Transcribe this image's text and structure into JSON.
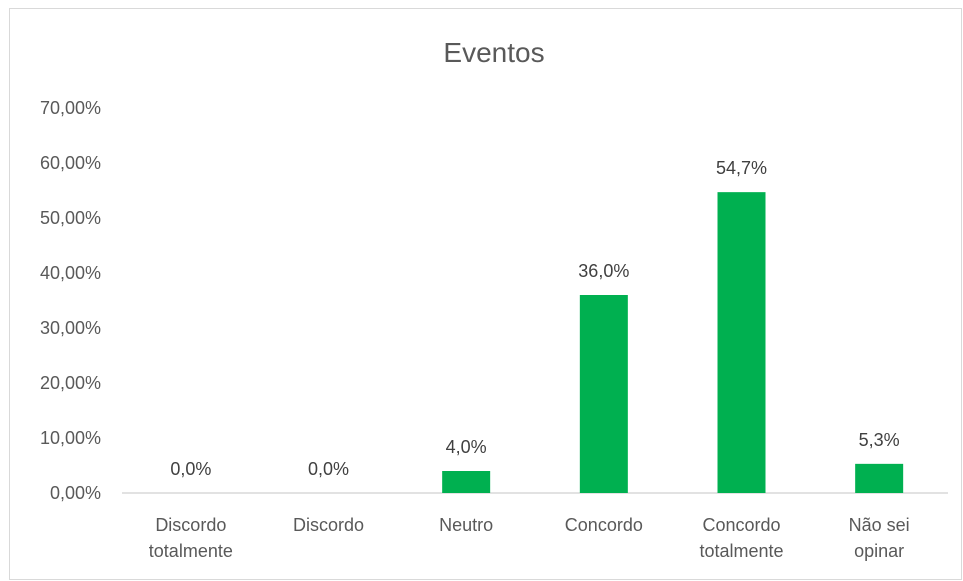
{
  "chart_data": {
    "type": "bar",
    "title": "Eventos",
    "categories": [
      [
        "Discordo",
        "totalmente"
      ],
      [
        "Discordo"
      ],
      [
        "Neutro"
      ],
      [
        "Concordo"
      ],
      [
        "Concordo",
        "totalmente"
      ],
      [
        "Não sei",
        "opinar"
      ]
    ],
    "values": [
      0.0,
      0.0,
      4.0,
      36.0,
      54.7,
      5.3
    ],
    "data_labels": [
      "0,0%",
      "0,0%",
      "4,0%",
      "36,0%",
      "54,7%",
      "5,3%"
    ],
    "y_ticks": [
      "0,00%",
      "10,00%",
      "20,00%",
      "30,00%",
      "40,00%",
      "50,00%",
      "60,00%",
      "70,00%"
    ],
    "ylim": [
      0,
      70
    ],
    "xlabel": "",
    "ylabel": "",
    "grid": false,
    "legend": "none",
    "bar_color": "#00b050"
  }
}
